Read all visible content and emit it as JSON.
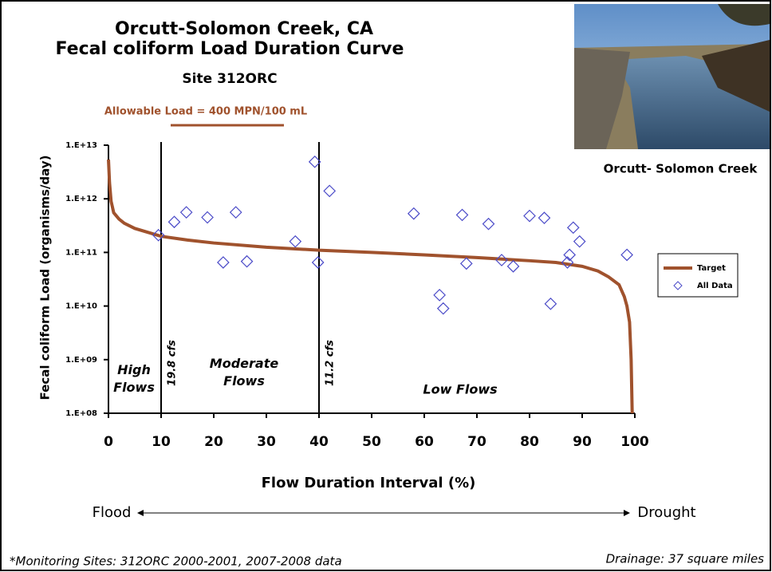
{
  "chart_data": {
    "type": "line",
    "title": [
      "Orcutt-Solomon Creek, CA",
      "Fecal coliform Load Duration Curve"
    ],
    "subtitle": "Site 312ORC",
    "annotation": "Allowable Load = 400 MPN/100 mL",
    "photo_caption": "Orcutt- Solomon Creek",
    "x_label": "Flow Duration Interval (%)",
    "y_label": "Fecal coliform Load (organisms/day)",
    "xlim": [
      0,
      100
    ],
    "xticks": [
      0,
      10,
      20,
      30,
      40,
      50,
      60,
      70,
      80,
      90,
      100
    ],
    "ylim": [
      100000000,
      10000000000000
    ],
    "ylog": true,
    "yticks": [
      {
        "value": 100000000,
        "label": "1.E+08"
      },
      {
        "value": 1000000000,
        "label": "1.E+09"
      },
      {
        "value": 10000000000,
        "label": "1.E+10"
      },
      {
        "value": 100000000000,
        "label": "1.E+11"
      },
      {
        "value": 1000000000000,
        "label": "1.E+12"
      },
      {
        "value": 10000000000000,
        "label": "1.E+13"
      }
    ],
    "dividers": [
      {
        "x": 10,
        "label": "19.8 cfs"
      },
      {
        "x": 40,
        "label": "11.2 cfs"
      }
    ],
    "regions": [
      "High Flows",
      "Moderate Flows",
      "Low Flows"
    ],
    "series": [
      {
        "name": "Target",
        "type": "line",
        "color": "#a0522d",
        "x": [
          0,
          0.2,
          0.5,
          1,
          2,
          3,
          5,
          10,
          15,
          20,
          30,
          40,
          50,
          60,
          70,
          80,
          85,
          90,
          93,
          95,
          97,
          98,
          98.5,
          99,
          99.3,
          99.5
        ],
        "values": [
          5400000000000,
          2000000000000,
          900000000000,
          550000000000,
          420000000000,
          350000000000,
          280000000000,
          200000000000,
          170000000000,
          150000000000,
          125000000000,
          110000000000,
          100000000000,
          90000000000,
          80000000000,
          70000000000,
          65000000000,
          55000000000,
          45000000000,
          35000000000,
          25000000000,
          15000000000,
          10000000000,
          5000000000,
          1000000000,
          100000000
        ]
      },
      {
        "name": "All Data",
        "type": "scatter",
        "color": "#4a4ac8",
        "x": [
          9.5,
          12.5,
          14.8,
          18.8,
          21.8,
          24.2,
          26.3,
          35.5,
          39.2,
          39.8,
          42,
          58,
          62.9,
          63.6,
          67.2,
          68,
          72.2,
          74.7,
          76.9,
          80,
          82.8,
          84,
          87.2,
          87.6,
          88.3,
          89.5,
          98.5
        ],
        "values": [
          210000000000,
          370000000000,
          560000000000,
          450000000000,
          65000000000,
          560000000000,
          68000000000,
          160000000000,
          4900000000000,
          65000000000,
          1400000000000,
          530000000000,
          16000000000,
          9000000000,
          500000000000,
          62000000000,
          340000000000,
          72000000000,
          55000000000,
          480000000000,
          440000000000,
          11000000000,
          65000000000,
          90000000000,
          290000000000,
          160000000000,
          90000000000
        ]
      }
    ],
    "legend_position": "right",
    "flow_arrow": [
      "Flood",
      "Drought"
    ],
    "footnote": "*Monitoring Sites: 312ORC 2000-2001, 2007-2008 data",
    "drainage": "Drainage: 37 square miles"
  }
}
